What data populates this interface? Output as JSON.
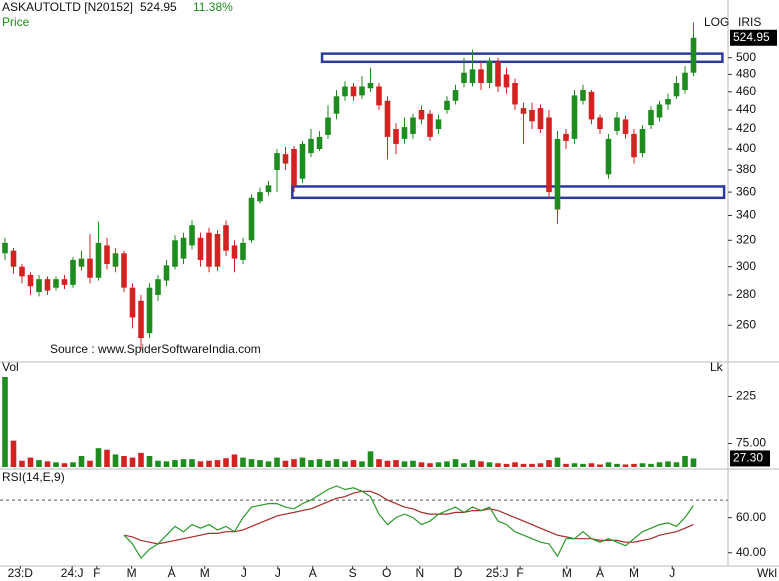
{
  "chart_data": {
    "type": "candlestick",
    "title": "ASKAUTOLTD [N20152]",
    "change": "11.38%",
    "ylabel": "Price",
    "scale_labels": [
      "LOG",
      "IRIS"
    ],
    "log": true,
    "source": "Source : www.SpiderSoftwareIndia.com",
    "x_unit_label": "Wkl",
    "up_color": "#1e8c1e",
    "down_color": "#d42222",
    "xticks": [
      {
        "value": 1.8,
        "label": "23:D"
      },
      {
        "value": 7.9,
        "label": "24:J"
      },
      {
        "value": 10.8,
        "label": "F"
      },
      {
        "value": 14.9,
        "label": "M"
      },
      {
        "value": 19.6,
        "label": "A"
      },
      {
        "value": 23.5,
        "label": "M"
      },
      {
        "value": 28.1,
        "label": "J"
      },
      {
        "value": 32.1,
        "label": "J"
      },
      {
        "value": 36.2,
        "label": "A"
      },
      {
        "value": 40.9,
        "label": "S"
      },
      {
        "value": 44.9,
        "label": "O"
      },
      {
        "value": 48.8,
        "label": "N"
      },
      {
        "value": 53.3,
        "label": "D"
      },
      {
        "value": 57.9,
        "label": "25:J"
      },
      {
        "value": 60.6,
        "label": "F"
      },
      {
        "value": 66.1,
        "label": "M"
      },
      {
        "value": 70,
        "label": "A"
      },
      {
        "value": 74,
        "label": "M"
      },
      {
        "value": 78.5,
        "label": "J"
      }
    ],
    "ylim": [
      240,
      555
    ],
    "yticks": [
      260,
      280,
      300,
      320,
      340,
      360,
      380,
      400,
      420,
      440,
      460,
      480,
      500
    ],
    "open": [
      310,
      312,
      300,
      294,
      282,
      291,
      285,
      291,
      287,
      300,
      306,
      292,
      316,
      300,
      310,
      285,
      276,
      255,
      280,
      290,
      300,
      306,
      316,
      322,
      326,
      325,
      332,
      316,
      305,
      320,
      352,
      360,
      380,
      395,
      400,
      372,
      396,
      400,
      414,
      436,
      455,
      466,
      456,
      464,
      466,
      450,
      420,
      410,
      415,
      440,
      436,
      420,
      440,
      450,
      470,
      470,
      486,
      470,
      495,
      480,
      470,
      442,
      440,
      442,
      432,
      345,
      415,
      410,
      450,
      460,
      432,
      376,
      418,
      430,
      415,
      396,
      424,
      432,
      446,
      455,
      462,
      482
    ],
    "high": [
      322,
      314,
      302,
      296,
      294,
      293,
      293,
      294,
      307,
      312,
      325,
      335,
      322,
      314,
      312,
      288,
      280,
      288,
      294,
      305,
      324,
      326,
      336,
      326,
      330,
      328,
      336,
      320,
      322,
      358,
      364,
      370,
      400,
      402,
      403,
      408,
      420,
      418,
      445,
      462,
      472,
      470,
      478,
      488,
      470,
      455,
      426,
      432,
      436,
      445,
      440,
      435,
      455,
      468,
      500,
      510,
      495,
      500,
      500,
      488,
      475,
      448,
      448,
      446,
      440,
      418,
      420,
      462,
      468,
      462,
      435,
      415,
      438,
      434,
      420,
      424,
      444,
      450,
      458,
      478,
      490,
      545
    ],
    "low": [
      305,
      295,
      288,
      280,
      279,
      280,
      283,
      284,
      285,
      297,
      288,
      290,
      298,
      296,
      282,
      258,
      245,
      252,
      276,
      286,
      298,
      302,
      313,
      300,
      296,
      297,
      308,
      296,
      302,
      318,
      350,
      357,
      360,
      380,
      360,
      368,
      392,
      398,
      410,
      430,
      450,
      450,
      452,
      460,
      440,
      390,
      395,
      405,
      410,
      425,
      408,
      415,
      436,
      446,
      465,
      466,
      462,
      464,
      460,
      458,
      440,
      405,
      420,
      416,
      355,
      333,
      400,
      405,
      446,
      425,
      415,
      372,
      414,
      410,
      386,
      392,
      420,
      428,
      440,
      452,
      458,
      478
    ],
    "close": [
      318,
      300,
      293,
      286,
      291,
      283,
      291,
      287,
      305,
      306,
      292,
      318,
      302,
      310,
      285,
      265,
      252,
      285,
      291,
      301,
      320,
      322,
      332,
      305,
      300,
      300,
      312,
      306,
      318,
      355,
      360,
      366,
      396,
      386,
      366,
      405,
      410,
      412,
      432,
      455,
      466,
      455,
      466,
      470,
      445,
      412,
      405,
      422,
      432,
      430,
      412,
      430,
      450,
      462,
      482,
      486,
      470,
      496,
      466,
      465,
      446,
      436,
      428,
      420,
      360,
      410,
      408,
      456,
      462,
      430,
      420,
      410,
      432,
      415,
      392,
      420,
      440,
      446,
      452,
      470,
      482,
      524.95
    ],
    "zones": [
      {
        "low": 495,
        "high": 505,
        "from": 37.3,
        "to": 84.4,
        "color": "#2b3a9b"
      },
      {
        "low": 355,
        "high": 365,
        "from": 33.8,
        "to": 84.6,
        "color": "#2b3a9b"
      }
    ],
    "volume": {
      "label": "Vol",
      "unit": "Lk",
      "values": [
        287,
        84,
        20,
        30,
        22,
        18,
        15,
        12,
        15,
        35,
        20,
        60,
        55,
        40,
        35,
        30,
        45,
        35,
        20,
        18,
        22,
        25,
        25,
        18,
        20,
        22,
        28,
        40,
        30,
        25,
        22,
        18,
        30,
        20,
        25,
        30,
        22,
        25,
        20,
        25,
        18,
        22,
        18,
        50,
        25,
        20,
        22,
        18,
        20,
        15,
        12,
        15,
        18,
        25,
        12,
        22,
        18,
        15,
        12,
        10,
        15,
        10,
        10,
        12,
        22,
        30,
        10,
        12,
        10,
        12,
        8,
        15,
        10,
        8,
        10,
        12,
        10,
        15,
        18,
        15,
        35,
        27.3
      ],
      "last_label": "27.30",
      "ylim": [
        0,
        303
      ],
      "yticks": [
        225,
        {
          "value": 75,
          "label": "75.00"
        }
      ]
    },
    "rsi": {
      "label": "RSI(14,E,9)",
      "color": "#2a9a2a",
      "signal_color": "#a82a2a",
      "level": 70,
      "values": [
        null,
        null,
        null,
        null,
        null,
        null,
        null,
        null,
        null,
        null,
        null,
        null,
        null,
        null,
        50,
        45,
        37,
        42,
        45,
        50,
        55,
        52,
        56,
        54,
        56,
        53,
        55,
        52,
        60,
        66,
        67,
        68,
        68,
        66,
        65,
        68,
        70,
        73,
        76,
        78,
        76,
        77,
        75,
        72,
        62,
        56,
        60,
        62,
        60,
        56,
        58,
        62,
        64,
        66,
        63,
        66,
        64,
        66,
        58,
        56,
        52,
        50,
        48,
        46,
        45,
        38,
        48,
        48,
        52,
        48,
        46,
        48,
        46,
        44,
        48,
        52,
        54,
        56,
        57,
        55,
        60,
        67
      ],
      "signal": [
        null,
        null,
        null,
        null,
        null,
        null,
        null,
        null,
        null,
        null,
        null,
        null,
        null,
        null,
        50,
        49,
        47,
        46,
        45,
        46,
        47,
        48,
        49,
        50,
        51,
        51,
        52,
        52,
        53,
        55,
        57,
        59,
        61,
        62,
        63,
        64,
        65,
        67,
        69,
        71,
        72,
        74,
        75,
        75,
        73,
        70,
        68,
        66,
        65,
        63,
        62,
        62,
        62,
        63,
        63,
        64,
        64,
        65,
        64,
        62,
        60,
        58,
        56,
        54,
        52,
        50,
        49,
        48,
        48,
        48,
        47,
        47,
        47,
        46,
        46,
        47,
        48,
        50,
        51,
        52,
        54,
        56
      ],
      "ylim": [
        33,
        86
      ],
      "yticks": [
        {
          "value": 60,
          "label": "60.00"
        },
        {
          "value": 40,
          "label": "40.00"
        }
      ]
    }
  }
}
